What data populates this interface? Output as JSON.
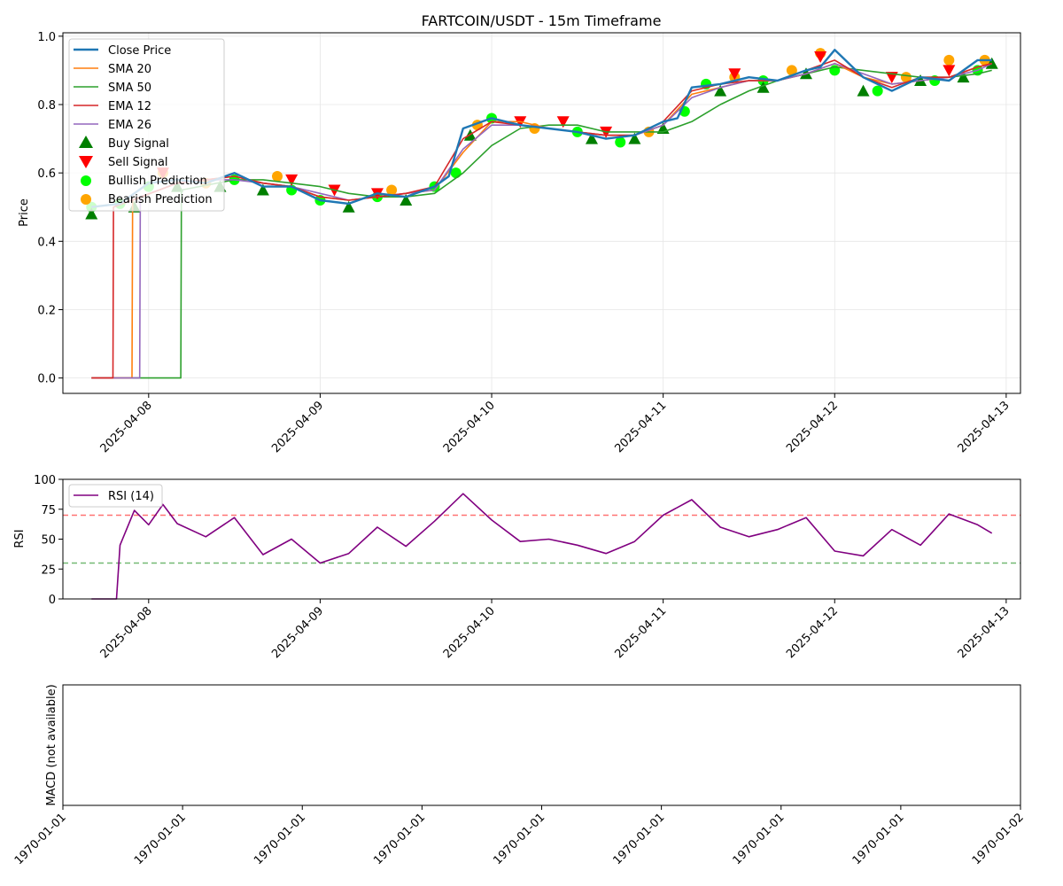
{
  "figure": {
    "title": "FARTCOIN/USDT - 15m Timeframe",
    "colors": {
      "close": "#1f77b4",
      "sma20": "#ff7f0e",
      "sma50": "#2ca02c",
      "ema12": "#d62728",
      "ema26": "#9467bd",
      "buy": "#007f00",
      "sell": "#ff0000",
      "bullish": "#00ff00",
      "bearish": "#ffa500",
      "rsi": "#800080",
      "overbought": "#ff0000",
      "oversold": "#008000"
    }
  },
  "chart_data": [
    {
      "type": "line",
      "panel": "price",
      "title": "FARTCOIN/USDT - 15m Timeframe",
      "ylabel": "Price",
      "xlabel": "",
      "xlim": [
        "2025-04-07 12:00",
        "2025-04-13 02:00"
      ],
      "ylim": [
        -0.045,
        1.01
      ],
      "grid": true,
      "legend_position": "top-left",
      "x_ticks": [
        "2025-04-08",
        "2025-04-09",
        "2025-04-10",
        "2025-04-11",
        "2025-04-12",
        "2025-04-13"
      ],
      "y_ticks": [
        "0.0",
        "0.2",
        "0.4",
        "0.6",
        "0.8",
        "1.0"
      ],
      "legend": [
        "Close Price",
        "SMA 20",
        "SMA 50",
        "EMA 12",
        "EMA 26",
        "Buy Signal",
        "Sell Signal",
        "Bullish Prediction",
        "Bearish Prediction"
      ],
      "series": [
        {
          "name": "Close Price",
          "key": "close",
          "x": [
            "2025-04-07 16:00",
            "2025-04-07 20:00",
            "2025-04-08 00:00",
            "2025-04-08 04:00",
            "2025-04-08 08:00",
            "2025-04-08 12:00",
            "2025-04-08 16:00",
            "2025-04-08 20:00",
            "2025-04-09 00:00",
            "2025-04-09 04:00",
            "2025-04-09 08:00",
            "2025-04-09 12:00",
            "2025-04-09 16:00",
            "2025-04-09 18:00",
            "2025-04-09 20:00",
            "2025-04-10 00:00",
            "2025-04-10 04:00",
            "2025-04-10 08:00",
            "2025-04-10 12:00",
            "2025-04-10 16:00",
            "2025-04-10 20:00",
            "2025-04-11 00:00",
            "2025-04-11 02:00",
            "2025-04-11 04:00",
            "2025-04-11 08:00",
            "2025-04-11 12:00",
            "2025-04-11 16:00",
            "2025-04-11 20:00",
            "2025-04-11 22:00",
            "2025-04-12 00:00",
            "2025-04-12 04:00",
            "2025-04-12 08:00",
            "2025-04-12 12:00",
            "2025-04-12 16:00",
            "2025-04-12 20:00",
            "2025-04-12 22:00"
          ],
          "y": [
            0.5,
            0.51,
            0.57,
            0.58,
            0.57,
            0.6,
            0.56,
            0.56,
            0.52,
            0.51,
            0.54,
            0.53,
            0.56,
            0.59,
            0.73,
            0.76,
            0.74,
            0.73,
            0.72,
            0.7,
            0.71,
            0.75,
            0.76,
            0.85,
            0.86,
            0.88,
            0.87,
            0.9,
            0.91,
            0.96,
            0.88,
            0.84,
            0.88,
            0.87,
            0.93,
            0.93
          ]
        },
        {
          "name": "SMA 20",
          "key": "sma20",
          "x": [
            "2025-04-07 16:00",
            "2025-04-07 21:40",
            "2025-04-07 21:45",
            "2025-04-08 04:00",
            "2025-04-08 08:00",
            "2025-04-08 12:00",
            "2025-04-08 16:00",
            "2025-04-08 20:00",
            "2025-04-09 00:00",
            "2025-04-09 04:00",
            "2025-04-09 08:00",
            "2025-04-09 12:00",
            "2025-04-09 16:00",
            "2025-04-09 20:00",
            "2025-04-10 00:00",
            "2025-04-10 04:00",
            "2025-04-10 08:00",
            "2025-04-10 12:00",
            "2025-04-10 16:00",
            "2025-04-10 20:00",
            "2025-04-11 00:00",
            "2025-04-11 04:00",
            "2025-04-11 08:00",
            "2025-04-11 12:00",
            "2025-04-11 16:00",
            "2025-04-11 20:00",
            "2025-04-12 00:00",
            "2025-04-12 04:00",
            "2025-04-12 08:00",
            "2025-04-12 12:00",
            "2025-04-12 16:00",
            "2025-04-12 20:00",
            "2025-04-12 22:00"
          ],
          "y": [
            0,
            0,
            0.52,
            0.57,
            0.58,
            0.59,
            0.57,
            0.56,
            0.53,
            0.52,
            0.53,
            0.54,
            0.55,
            0.66,
            0.75,
            0.75,
            0.73,
            0.72,
            0.71,
            0.71,
            0.74,
            0.83,
            0.85,
            0.87,
            0.87,
            0.89,
            0.92,
            0.88,
            0.86,
            0.87,
            0.88,
            0.91,
            0.92
          ]
        },
        {
          "name": "SMA 50",
          "key": "sma50",
          "x": [
            "2025-04-07 16:00",
            "2025-04-08 04:30",
            "2025-04-08 04:35",
            "2025-04-08 12:00",
            "2025-04-08 16:00",
            "2025-04-08 20:00",
            "2025-04-09 00:00",
            "2025-04-09 04:00",
            "2025-04-09 08:00",
            "2025-04-09 12:00",
            "2025-04-09 16:00",
            "2025-04-09 20:00",
            "2025-04-10 00:00",
            "2025-04-10 04:00",
            "2025-04-10 08:00",
            "2025-04-10 12:00",
            "2025-04-10 16:00",
            "2025-04-10 20:00",
            "2025-04-11 00:00",
            "2025-04-11 04:00",
            "2025-04-11 08:00",
            "2025-04-11 12:00",
            "2025-04-11 16:00",
            "2025-04-11 20:00",
            "2025-04-12 00:00",
            "2025-04-12 04:00",
            "2025-04-12 08:00",
            "2025-04-12 12:00",
            "2025-04-12 16:00",
            "2025-04-12 20:00",
            "2025-04-12 22:00"
          ],
          "y": [
            0,
            0,
            0.55,
            0.58,
            0.58,
            0.57,
            0.56,
            0.54,
            0.53,
            0.53,
            0.54,
            0.6,
            0.68,
            0.73,
            0.74,
            0.74,
            0.72,
            0.72,
            0.72,
            0.75,
            0.8,
            0.84,
            0.87,
            0.89,
            0.91,
            0.9,
            0.89,
            0.88,
            0.88,
            0.89,
            0.9
          ]
        },
        {
          "name": "EMA 12",
          "key": "ema12",
          "x": [
            "2025-04-07 16:00",
            "2025-04-07 19:00",
            "2025-04-07 19:05",
            "2025-04-08 04:00",
            "2025-04-08 08:00",
            "2025-04-08 12:00",
            "2025-04-08 16:00",
            "2025-04-08 20:00",
            "2025-04-09 00:00",
            "2025-04-09 04:00",
            "2025-04-09 08:00",
            "2025-04-09 12:00",
            "2025-04-09 16:00",
            "2025-04-09 20:00",
            "2025-04-10 00:00",
            "2025-04-10 04:00",
            "2025-04-10 08:00",
            "2025-04-10 12:00",
            "2025-04-10 16:00",
            "2025-04-10 20:00",
            "2025-04-11 00:00",
            "2025-04-11 04:00",
            "2025-04-11 08:00",
            "2025-04-11 12:00",
            "2025-04-11 16:00",
            "2025-04-11 20:00",
            "2025-04-12 00:00",
            "2025-04-12 04:00",
            "2025-04-12 08:00",
            "2025-04-12 12:00",
            "2025-04-12 16:00",
            "2025-04-12 20:00",
            "2025-04-12 22:00"
          ],
          "y": [
            0,
            0,
            0.5,
            0.57,
            0.58,
            0.59,
            0.57,
            0.56,
            0.53,
            0.52,
            0.53,
            0.54,
            0.56,
            0.7,
            0.75,
            0.74,
            0.73,
            0.72,
            0.71,
            0.71,
            0.75,
            0.84,
            0.86,
            0.87,
            0.87,
            0.9,
            0.93,
            0.88,
            0.85,
            0.88,
            0.88,
            0.91,
            0.92
          ]
        },
        {
          "name": "EMA 26",
          "key": "ema26",
          "x": [
            "2025-04-07 16:00",
            "2025-04-07 22:45",
            "2025-04-07 22:50",
            "2025-04-08 04:00",
            "2025-04-08 08:00",
            "2025-04-08 12:00",
            "2025-04-08 16:00",
            "2025-04-08 20:00",
            "2025-04-09 00:00",
            "2025-04-09 04:00",
            "2025-04-09 08:00",
            "2025-04-09 12:00",
            "2025-04-09 16:00",
            "2025-04-09 20:00",
            "2025-04-10 00:00",
            "2025-04-10 04:00",
            "2025-04-10 08:00",
            "2025-04-10 12:00",
            "2025-04-10 16:00",
            "2025-04-10 20:00",
            "2025-04-11 00:00",
            "2025-04-11 04:00",
            "2025-04-11 08:00",
            "2025-04-11 12:00",
            "2025-04-11 16:00",
            "2025-04-11 20:00",
            "2025-04-12 00:00",
            "2025-04-12 04:00",
            "2025-04-12 08:00",
            "2025-04-12 12:00",
            "2025-04-12 16:00",
            "2025-04-12 20:00",
            "2025-04-12 22:00"
          ],
          "y": [
            0,
            0,
            0.53,
            0.57,
            0.58,
            0.58,
            0.57,
            0.56,
            0.54,
            0.52,
            0.53,
            0.54,
            0.55,
            0.67,
            0.74,
            0.74,
            0.73,
            0.72,
            0.71,
            0.71,
            0.74,
            0.82,
            0.85,
            0.87,
            0.87,
            0.89,
            0.92,
            0.89,
            0.86,
            0.87,
            0.88,
            0.9,
            0.92
          ]
        },
        {
          "name": "Buy Signal",
          "key": "buy",
          "x": [
            "2025-04-07 16:00",
            "2025-04-07 22:00",
            "2025-04-08 04:00",
            "2025-04-08 10:00",
            "2025-04-08 16:00",
            "2025-04-09 04:00",
            "2025-04-09 12:00",
            "2025-04-09 21:00",
            "2025-04-10 14:00",
            "2025-04-10 20:00",
            "2025-04-11 00:00",
            "2025-04-11 08:00",
            "2025-04-11 14:00",
            "2025-04-11 20:00",
            "2025-04-12 04:00",
            "2025-04-12 12:00",
            "2025-04-12 18:00",
            "2025-04-12 22:00"
          ],
          "y": [
            0.48,
            0.5,
            0.56,
            0.56,
            0.55,
            0.5,
            0.52,
            0.71,
            0.7,
            0.7,
            0.73,
            0.84,
            0.85,
            0.89,
            0.84,
            0.87,
            0.88,
            0.92
          ]
        },
        {
          "name": "Sell Signal",
          "key": "sell",
          "x": [
            "2025-04-08 02:00",
            "2025-04-08 20:00",
            "2025-04-09 02:00",
            "2025-04-09 08:00",
            "2025-04-10 04:00",
            "2025-04-10 10:00",
            "2025-04-10 16:00",
            "2025-04-11 10:00",
            "2025-04-11 22:00",
            "2025-04-12 08:00",
            "2025-04-12 16:00"
          ],
          "y": [
            0.6,
            0.58,
            0.55,
            0.54,
            0.75,
            0.75,
            0.72,
            0.89,
            0.94,
            0.88,
            0.9
          ]
        },
        {
          "name": "Bullish Prediction",
          "key": "bullish",
          "x": [
            "2025-04-07 16:00",
            "2025-04-07 20:00",
            "2025-04-08 00:00",
            "2025-04-08 12:00",
            "2025-04-08 20:00",
            "2025-04-09 00:00",
            "2025-04-09 08:00",
            "2025-04-09 16:00",
            "2025-04-09 19:00",
            "2025-04-10 00:00",
            "2025-04-10 12:00",
            "2025-04-10 18:00",
            "2025-04-11 03:00",
            "2025-04-11 06:00",
            "2025-04-11 14:00",
            "2025-04-12 00:00",
            "2025-04-12 06:00",
            "2025-04-12 14:00",
            "2025-04-12 20:00"
          ],
          "y": [
            0.5,
            0.51,
            0.56,
            0.58,
            0.55,
            0.52,
            0.53,
            0.56,
            0.6,
            0.76,
            0.72,
            0.69,
            0.78,
            0.86,
            0.87,
            0.9,
            0.84,
            0.87,
            0.9
          ]
        },
        {
          "name": "Bearish Prediction",
          "key": "bearish",
          "x": [
            "2025-04-08 02:00",
            "2025-04-08 08:00",
            "2025-04-08 18:00",
            "2025-04-09 10:00",
            "2025-04-09 22:00",
            "2025-04-10 06:00",
            "2025-04-10 22:00",
            "2025-04-11 10:00",
            "2025-04-11 18:00",
            "2025-04-11 22:00",
            "2025-04-12 10:00",
            "2025-04-12 16:00",
            "2025-04-12 21:00"
          ],
          "y": [
            0.6,
            0.57,
            0.59,
            0.55,
            0.74,
            0.73,
            0.72,
            0.88,
            0.9,
            0.95,
            0.88,
            0.93,
            0.93
          ]
        }
      ]
    },
    {
      "type": "line",
      "panel": "rsi",
      "ylabel": "RSI",
      "xlabel": "",
      "xlim": [
        "2025-04-07 12:00",
        "2025-04-13 02:00"
      ],
      "ylim": [
        0,
        100
      ],
      "grid": false,
      "legend_position": "top-left",
      "x_ticks": [
        "2025-04-08",
        "2025-04-09",
        "2025-04-10",
        "2025-04-11",
        "2025-04-12",
        "2025-04-13"
      ],
      "y_ticks": [
        "0",
        "25",
        "50",
        "75",
        "100"
      ],
      "legend": [
        "RSI (14)"
      ],
      "reference_lines": [
        70,
        30
      ],
      "series": [
        {
          "name": "RSI (14)",
          "key": "rsi",
          "x": [
            "2025-04-07 16:00",
            "2025-04-07 19:30",
            "2025-04-07 20:00",
            "2025-04-07 22:00",
            "2025-04-08 00:00",
            "2025-04-08 02:00",
            "2025-04-08 04:00",
            "2025-04-08 08:00",
            "2025-04-08 12:00",
            "2025-04-08 16:00",
            "2025-04-08 20:00",
            "2025-04-09 00:00",
            "2025-04-09 04:00",
            "2025-04-09 08:00",
            "2025-04-09 12:00",
            "2025-04-09 16:00",
            "2025-04-09 20:00",
            "2025-04-10 00:00",
            "2025-04-10 04:00",
            "2025-04-10 08:00",
            "2025-04-10 12:00",
            "2025-04-10 16:00",
            "2025-04-10 20:00",
            "2025-04-11 00:00",
            "2025-04-11 04:00",
            "2025-04-11 08:00",
            "2025-04-11 12:00",
            "2025-04-11 16:00",
            "2025-04-11 20:00",
            "2025-04-12 00:00",
            "2025-04-12 04:00",
            "2025-04-12 08:00",
            "2025-04-12 12:00",
            "2025-04-12 16:00",
            "2025-04-12 20:00",
            "2025-04-12 22:00"
          ],
          "y": [
            0,
            0,
            45,
            74,
            62,
            79,
            63,
            52,
            68,
            37,
            50,
            30,
            38,
            60,
            44,
            65,
            88,
            66,
            48,
            50,
            45,
            38,
            48,
            70,
            83,
            60,
            52,
            58,
            68,
            40,
            36,
            58,
            45,
            71,
            62,
            55
          ]
        }
      ]
    },
    {
      "type": "line",
      "panel": "macd",
      "ylabel": "MACD (not available)",
      "xlabel": "",
      "grid": false,
      "x_ticks": [
        "1970-01-01",
        "1970-01-01",
        "1970-01-01",
        "1970-01-01",
        "1970-01-01",
        "1970-01-01",
        "1970-01-01",
        "1970-01-01",
        "1970-01-02"
      ],
      "series": []
    }
  ]
}
